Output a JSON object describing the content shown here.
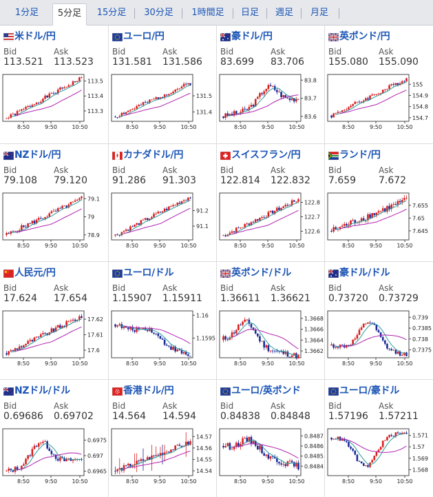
{
  "tabs": [
    {
      "label": "1分足"
    },
    {
      "label": "5分足",
      "active": true
    },
    {
      "label": "15分足"
    },
    {
      "label": "30分足"
    },
    {
      "label": "1時間足"
    },
    {
      "label": "日足"
    },
    {
      "label": "週足"
    },
    {
      "label": "月足"
    }
  ],
  "bid_label": "Bid",
  "ask_label": "Ask",
  "colors": {
    "up": "#d81e1e",
    "down": "#1a2a9a",
    "ma_short": "#2a9a9a",
    "ma_long": "#b020b0",
    "link": "#1c55b6"
  },
  "pairs": [
    {
      "name": "米ドル/円",
      "flag": "us",
      "bid": "113.521",
      "ask": "113.523",
      "chart_data": {
        "type": "candlestick",
        "x_ticks": [
          "8:50",
          "9:50",
          "10:50"
        ],
        "y_ticks": [
          "113.5",
          "113.4",
          "113.3"
        ],
        "ylim": [
          113.24,
          113.53
        ],
        "open": 113.25,
        "close": 113.52,
        "wiggle": 0.012,
        "seed": 1
      }
    },
    {
      "name": "ユーロ/円",
      "flag": "eu",
      "bid": "131.581",
      "ask": "131.586",
      "chart_data": {
        "type": "candlestick",
        "x_ticks": [
          "8:50",
          "9:50",
          "10:50"
        ],
        "y_ticks": [
          "131.5",
          "131.4"
        ],
        "ylim": [
          131.35,
          131.62
        ],
        "open": 131.37,
        "close": 131.58,
        "wiggle": 0.012,
        "seed": 2
      }
    },
    {
      "name": "豪ドル/円",
      "flag": "au",
      "bid": "83.699",
      "ask": "83.706",
      "chart_data": {
        "type": "candlestick",
        "x_ticks": [
          "8:50",
          "9:50",
          "10:50"
        ],
        "y_ticks": [
          "83.8",
          "83.7",
          "83.6"
        ],
        "ylim": [
          83.58,
          83.82
        ],
        "open": 83.6,
        "close": 83.7,
        "wiggle": 0.014,
        "seed": 3,
        "peak": 0.6
      }
    },
    {
      "name": "英ポンド/円",
      "flag": "uk",
      "bid": "155.080",
      "ask": "155.090",
      "chart_data": {
        "type": "candlestick",
        "x_ticks": [
          "8:50",
          "9:50",
          "10:50"
        ],
        "y_ticks": [
          "155",
          "154.9",
          "154.8",
          "154.7"
        ],
        "ylim": [
          154.68,
          155.07
        ],
        "open": 154.72,
        "close": 155.05,
        "wiggle": 0.018,
        "seed": 4
      }
    },
    {
      "name": "NZドル/円",
      "flag": "nz",
      "bid": "79.108",
      "ask": "79.120",
      "chart_data": {
        "type": "candlestick",
        "x_ticks": [
          "8:50",
          "9:50",
          "10:50"
        ],
        "y_ticks": [
          "79.1",
          "79",
          "78.9"
        ],
        "ylim": [
          78.88,
          79.12
        ],
        "open": 78.9,
        "close": 79.1,
        "wiggle": 0.012,
        "seed": 5
      }
    },
    {
      "name": "カナダドル/円",
      "flag": "ca",
      "bid": "91.286",
      "ask": "91.303",
      "chart_data": {
        "type": "candlestick",
        "x_ticks": [
          "8:50",
          "9:50",
          "10:50"
        ],
        "y_ticks": [
          "91.2",
          "91.1"
        ],
        "ylim": [
          91.02,
          91.3
        ],
        "open": 91.04,
        "close": 91.29,
        "wiggle": 0.012,
        "seed": 6
      }
    },
    {
      "name": "スイスフラン/円",
      "flag": "ch",
      "bid": "122.814",
      "ask": "122.832",
      "chart_data": {
        "type": "candlestick",
        "x_ticks": [
          "8:50",
          "9:50",
          "10:50"
        ],
        "y_ticks": [
          "122.8",
          "122.7",
          "122.6"
        ],
        "ylim": [
          122.55,
          122.85
        ],
        "open": 122.57,
        "close": 122.82,
        "wiggle": 0.014,
        "seed": 7
      }
    },
    {
      "name": "ランド/円",
      "flag": "za",
      "bid": "7.659",
      "ask": "7.672",
      "chart_data": {
        "type": "candlestick",
        "x_ticks": [
          "8:50",
          "9:50",
          "10:50"
        ],
        "y_ticks": [
          "7.655",
          "7.65",
          "7.645"
        ],
        "ylim": [
          7.642,
          7.659
        ],
        "open": 7.645,
        "close": 7.657,
        "wiggle": 0.0012,
        "seed": 8
      }
    },
    {
      "name": "人民元/円",
      "flag": "cn",
      "bid": "17.624",
      "ask": "17.654",
      "chart_data": {
        "type": "candlestick",
        "x_ticks": [
          "8:50",
          "9:50",
          "10:50"
        ],
        "y_ticks": [
          "17.62",
          "17.61",
          "17.6"
        ],
        "ylim": [
          17.596,
          17.624
        ],
        "open": 17.598,
        "close": 17.622,
        "wiggle": 0.0015,
        "seed": 9
      }
    },
    {
      "name": "ユーロ/ドル",
      "flag": "eu",
      "bid": "1.15907",
      "ask": "1.15911",
      "chart_data": {
        "type": "candlestick",
        "x_ticks": [
          "8:50",
          "9:50",
          "10:50"
        ],
        "y_ticks": [
          "1.16",
          "1.1595"
        ],
        "ylim": [
          1.1591,
          1.16005
        ],
        "open": 1.1598,
        "close": 1.1591,
        "wiggle": 5e-05,
        "seed": 10,
        "peak": 0.45
      }
    },
    {
      "name": "英ポンド/ドル",
      "flag": "uk",
      "bid": "1.36611",
      "ask": "1.36621",
      "chart_data": {
        "type": "candlestick",
        "x_ticks": [
          "8:50",
          "9:50",
          "10:50"
        ],
        "y_ticks": [
          "1.3668",
          "1.3666",
          "1.3664",
          "1.3662"
        ],
        "ylim": [
          1.3661,
          1.3669
        ],
        "open": 1.3664,
        "close": 1.3661,
        "wiggle": 5e-05,
        "seed": 11,
        "peak": 0.3
      }
    },
    {
      "name": "豪ドル/ドル",
      "flag": "au",
      "bid": "0.73720",
      "ask": "0.73729",
      "chart_data": {
        "type": "candlestick",
        "x_ticks": [
          "8:50",
          "9:50",
          "10:50"
        ],
        "y_ticks": [
          "0.739",
          "0.7385",
          "0.738",
          "0.7375"
        ],
        "ylim": [
          0.7372,
          0.7392
        ],
        "open": 0.7377,
        "close": 0.7373,
        "wiggle": 0.0001,
        "seed": 12,
        "peak": 0.5
      }
    },
    {
      "name": "NZドル/ドル",
      "flag": "nz",
      "bid": "0.69686",
      "ask": "0.69702",
      "chart_data": {
        "type": "candlestick",
        "x_ticks": [
          "8:50",
          "9:50",
          "10:50"
        ],
        "y_ticks": [
          "0.6975",
          "0.697",
          "0.6965"
        ],
        "ylim": [
          0.6964,
          0.6978
        ],
        "open": 0.6965,
        "close": 0.6969,
        "wiggle": 8e-05,
        "seed": 13,
        "peak": 0.45
      }
    },
    {
      "name": "香港ドル/円",
      "flag": "hk",
      "bid": "14.564",
      "ask": "14.594",
      "chart_data": {
        "type": "candlestick",
        "x_ticks": [
          "8:50",
          "9:50",
          "10:50"
        ],
        "y_ticks": [
          "14.57",
          "14.56",
          "14.55",
          "14.54"
        ],
        "ylim": [
          14.537,
          14.575
        ],
        "open": 14.54,
        "close": 14.565,
        "wiggle": 0.002,
        "seed": 14,
        "spiky": true
      }
    },
    {
      "name": "ユーロ/英ポンド",
      "flag": "eu",
      "bid": "0.84838",
      "ask": "0.84848",
      "chart_data": {
        "type": "candlestick",
        "x_ticks": [
          "8:50",
          "9:50",
          "10:50"
        ],
        "y_ticks": [
          "0.8487",
          "0.8486",
          "0.8485",
          "0.8484"
        ],
        "ylim": [
          0.84832,
          0.84875
        ],
        "open": 0.8486,
        "close": 0.8484,
        "wiggle": 3e-05,
        "seed": 15,
        "peak": 0.35
      }
    },
    {
      "name": "ユーロ/豪ドル",
      "flag": "eu",
      "bid": "1.57196",
      "ask": "1.57211",
      "chart_data": {
        "type": "candlestick",
        "x_ticks": [
          "8:50",
          "9:50",
          "10:50"
        ],
        "y_ticks": [
          "1.571",
          "1.57",
          "1.569",
          "1.568"
        ],
        "ylim": [
          1.5676,
          1.5714
        ],
        "open": 1.5708,
        "close": 1.5712,
        "wiggle": 0.00015,
        "seed": 16,
        "trough": 0.45
      }
    }
  ]
}
